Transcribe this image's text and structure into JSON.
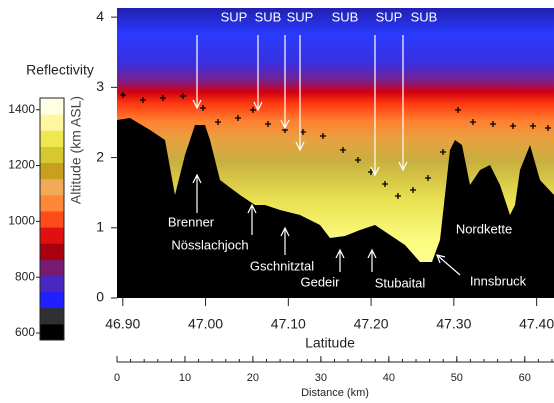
{
  "chart_data": {
    "type": "heatmap",
    "y_label": "Altitude (km ASL)",
    "x_label": "Latitude",
    "ylim": [
      0,
      4.13
    ],
    "yticks": [
      0,
      1,
      2,
      3,
      4
    ],
    "xlim": [
      46.893,
      47.421
    ],
    "xticks": [
      {
        "value": 46.9,
        "label": "46.90"
      },
      {
        "value": 47.0,
        "label": "47.00"
      },
      {
        "value": 47.1,
        "label": "47.10"
      },
      {
        "value": 47.2,
        "label": "47.20"
      },
      {
        "value": 47.3,
        "label": "47.30"
      },
      {
        "value": 47.4,
        "label": "47.40"
      }
    ],
    "x2_label": "Distance (km)",
    "x2lim": [
      0,
      64.3
    ],
    "x2ticks": [
      0,
      10,
      20,
      30,
      40,
      50,
      60
    ],
    "colorbar": {
      "title": "Reflectivity",
      "ylim": [
        575,
        1442
      ],
      "ticks": [
        600,
        800,
        1000,
        1200,
        1400
      ],
      "colors": [
        "#000000",
        "#303030",
        "#1f1fff",
        "#4a28c0",
        "#7a1a70",
        "#a80010",
        "#e01010",
        "#ff4a1a",
        "#ff8838",
        "#f0aa58",
        "#c8a020",
        "#d8c830",
        "#f0e850",
        "#fff6a0",
        "#ffffe6"
      ]
    },
    "annotations": [
      "SUP",
      "SUB",
      "SUP",
      "SUB",
      "SUP",
      "SUB",
      "Brenner",
      "Nösslachjoch",
      "Gschnitztal",
      "Gedeir",
      "Stubaital",
      "Innsbruck",
      "Nordkette"
    ]
  }
}
